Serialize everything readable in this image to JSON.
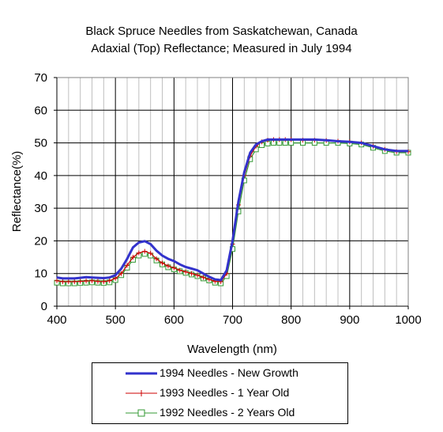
{
  "chart_data": {
    "type": "line",
    "title": "Black Spruce Needles from Saskatchewan, Canada",
    "subtitle": "Adaxial (Top) Reflectance; Measured in July 1994",
    "xlabel": "Wavelength (nm)",
    "ylabel": "Reflectance(%)",
    "xlim": [
      400,
      1000
    ],
    "ylim": [
      0,
      70
    ],
    "xticks": [
      400,
      500,
      600,
      700,
      800,
      900,
      1000
    ],
    "yticks": [
      0,
      10,
      20,
      30,
      40,
      50,
      60,
      70
    ],
    "grid": "on",
    "legend_position": "bottom",
    "x": [
      400,
      410,
      420,
      430,
      440,
      450,
      460,
      470,
      480,
      490,
      500,
      510,
      520,
      530,
      540,
      550,
      560,
      570,
      580,
      590,
      600,
      610,
      620,
      630,
      640,
      650,
      660,
      670,
      680,
      690,
      700,
      710,
      720,
      730,
      740,
      750,
      760,
      770,
      780,
      790,
      800,
      820,
      840,
      860,
      880,
      900,
      920,
      940,
      960,
      980,
      1000
    ],
    "series": [
      {
        "name": "1994 Needles - New Growth",
        "color": "#3333cc",
        "marker": "none",
        "values": [
          8.8,
          8.5,
          8.5,
          8.5,
          8.7,
          8.9,
          8.8,
          8.7,
          8.6,
          8.8,
          9.5,
          11.5,
          14.5,
          18.0,
          19.5,
          19.9,
          19.0,
          17.0,
          15.5,
          14.5,
          13.8,
          12.8,
          12.0,
          11.5,
          11.0,
          10.0,
          9.0,
          8.2,
          8.0,
          11.0,
          20.0,
          32.0,
          41.0,
          47.0,
          49.5,
          50.5,
          51.0,
          51.0,
          51.0,
          51.0,
          51.0,
          51.0,
          51.0,
          50.8,
          50.5,
          50.3,
          50.0,
          49.0,
          48.0,
          47.5,
          47.5
        ]
      },
      {
        "name": "1993 Needles - 1 Year Old",
        "color": "#cc0000",
        "marker": "plus",
        "values": [
          7.8,
          7.5,
          7.5,
          7.5,
          7.6,
          7.7,
          7.8,
          7.6,
          7.5,
          7.8,
          8.5,
          10.0,
          12.5,
          15.0,
          16.3,
          16.8,
          16.2,
          14.5,
          13.2,
          12.3,
          11.7,
          11.0,
          10.5,
          10.0,
          9.5,
          8.8,
          8.2,
          7.6,
          7.5,
          10.0,
          19.0,
          31.0,
          40.0,
          46.0,
          49.0,
          50.3,
          50.8,
          51.0,
          51.0,
          51.0,
          51.0,
          50.8,
          50.8,
          50.7,
          50.5,
          50.3,
          50.0,
          49.0,
          48.0,
          47.3,
          47.3
        ]
      },
      {
        "name": "1992 Needles - 2 Years Old",
        "color": "#339933",
        "marker": "square",
        "values": [
          7.2,
          7.0,
          7.0,
          7.0,
          7.1,
          7.2,
          7.3,
          7.2,
          7.1,
          7.3,
          8.0,
          9.5,
          11.8,
          14.2,
          15.5,
          16.0,
          15.5,
          14.0,
          12.8,
          11.9,
          11.3,
          10.7,
          10.2,
          9.7,
          9.2,
          8.5,
          7.9,
          7.2,
          7.0,
          9.2,
          17.5,
          29.0,
          38.5,
          45.0,
          48.0,
          49.3,
          49.8,
          50.0,
          50.0,
          50.0,
          50.0,
          50.0,
          50.0,
          50.0,
          50.0,
          49.8,
          49.5,
          48.5,
          47.5,
          47.0,
          47.0
        ]
      }
    ]
  }
}
